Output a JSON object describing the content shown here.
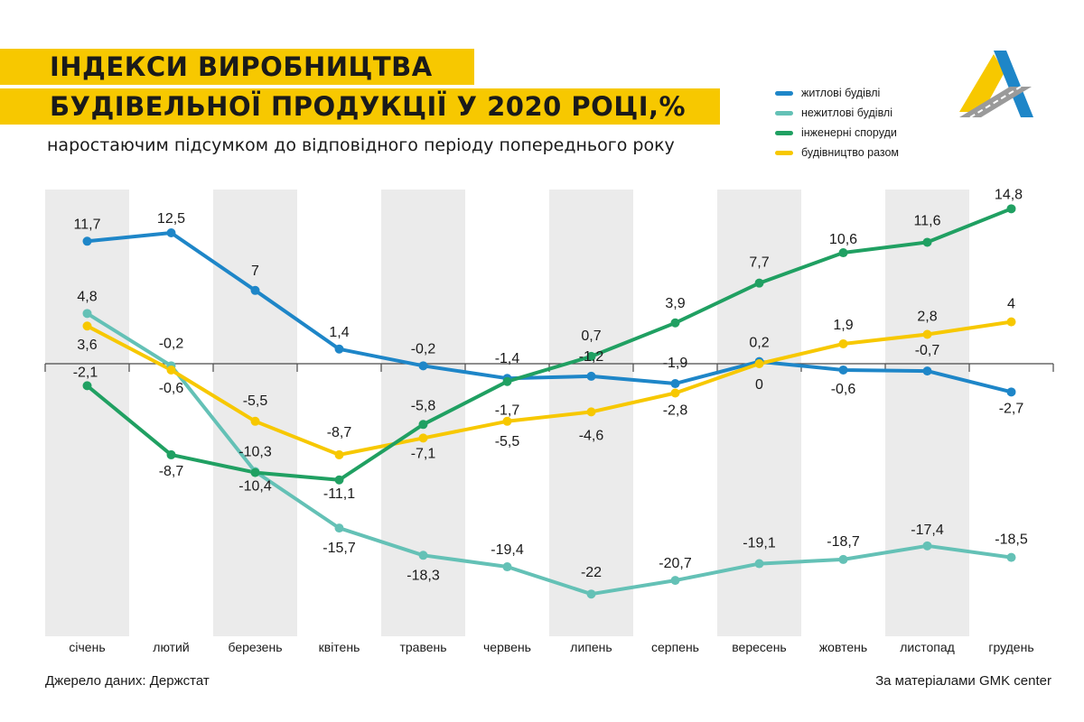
{
  "title_line1": "ІНДЕКСИ ВИРОБНИЦТВА",
  "title_line2": "БУДІВЕЛЬНОЇ ПРОДУКЦІЇ У 2020 РОЦІ,%",
  "subtitle": "наростаючим підсумком до відповідного періоду попереднього року",
  "source": "Джерело даних: Держстат",
  "credit": "За матеріалами GMK center",
  "logo_icon": "gmk-center-logo",
  "colors": {
    "title_band": "#f7c800",
    "residential": "#1e86c8",
    "nonresidential": "#64c1b6",
    "engineering": "#20a062",
    "total": "#f7c800",
    "stripe": "#ebebeb"
  },
  "chart_data": {
    "type": "line",
    "categories": [
      "січень",
      "лютий",
      "березень",
      "квітень",
      "травень",
      "червень",
      "липень",
      "серпень",
      "вересень",
      "жовтень",
      "листопад",
      "грудень"
    ],
    "grid": false,
    "alternating_column_shading": true,
    "zero_axis": true,
    "legend_position": "top-right",
    "ylim": [
      -22,
      14.8
    ],
    "series": [
      {
        "name": "житлові будівлі",
        "color": "#1e86c8",
        "values": [
          11.7,
          12.5,
          7,
          1.4,
          -0.2,
          -1.4,
          -1.2,
          -1.9,
          0.2,
          -0.6,
          -0.7,
          -2.7
        ]
      },
      {
        "name": "нежитлові будівлі",
        "color": "#64c1b6",
        "values": [
          4.8,
          -0.2,
          -10.3,
          -15.7,
          -18.3,
          -19.4,
          -22,
          -20.7,
          -19.1,
          -18.7,
          -17.4,
          -18.5
        ]
      },
      {
        "name": "інженерні споруди",
        "color": "#20a062",
        "values": [
          -2.1,
          -8.7,
          -10.4,
          -11.1,
          -5.8,
          -1.7,
          0.7,
          3.9,
          7.7,
          10.6,
          11.6,
          14.8
        ]
      },
      {
        "name": "будівництво разом",
        "color": "#f7c800",
        "values": [
          3.6,
          -0.6,
          -5.5,
          -8.7,
          -7.1,
          -5.5,
          -4.6,
          -2.8,
          0,
          1.9,
          2.8,
          4
        ]
      }
    ],
    "data_labels": [
      "11,7",
      "12,5",
      "7",
      "1,4",
      "-0,2",
      "-1,4",
      "-1,2",
      "-1,9",
      "0,2",
      "-0,6",
      "-0,7",
      "-2,7",
      "4,8",
      "-0,2",
      "-10,3",
      "-15,7",
      "-18,3",
      "-19,4",
      "-22",
      "-20,7",
      "-19,1",
      "-18,7",
      "-17,4",
      "-18,5",
      "-2,1",
      "-8,7",
      "-10,4",
      "-11,1",
      "-5,8",
      "-1,7",
      "0,7",
      "3,9",
      "7,7",
      "10,6",
      "11,6",
      "14,8",
      "3,6",
      "-0,6",
      "-5,5",
      "-8,7",
      "-7,1",
      "-5,5",
      "-4,6",
      "-2,8",
      "0",
      "1,9",
      "2,8",
      "4"
    ]
  }
}
